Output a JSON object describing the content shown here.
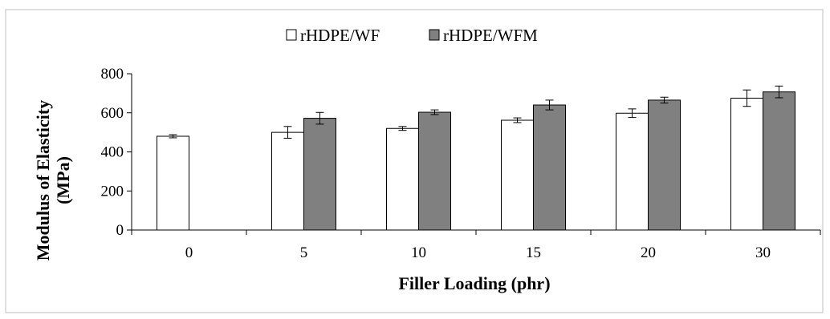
{
  "chart_data": {
    "type": "bar",
    "title": "",
    "xlabel": "Filler Loading (phr)",
    "ylabel_lines": [
      "Modulus of Elasticity",
      "(MPa)"
    ],
    "categories": [
      "0",
      "5",
      "10",
      "15",
      "20",
      "30"
    ],
    "ylim": [
      0,
      800
    ],
    "yticks": [
      "0",
      "200",
      "400",
      "600",
      "800"
    ],
    "grid": false,
    "legend_position": "top-center",
    "error_bars": true,
    "series": [
      {
        "name": "rHDPE/WF",
        "color": "#ffffff",
        "values": [
          480,
          500,
          520,
          562,
          598,
          675
        ],
        "errors": [
          8,
          30,
          10,
          12,
          22,
          42
        ]
      },
      {
        "name": "rHDPE/WFM",
        "color": "#808080",
        "values": [
          null,
          572,
          603,
          640,
          665,
          707
        ],
        "errors": [
          null,
          30,
          12,
          25,
          15,
          30
        ]
      }
    ]
  }
}
